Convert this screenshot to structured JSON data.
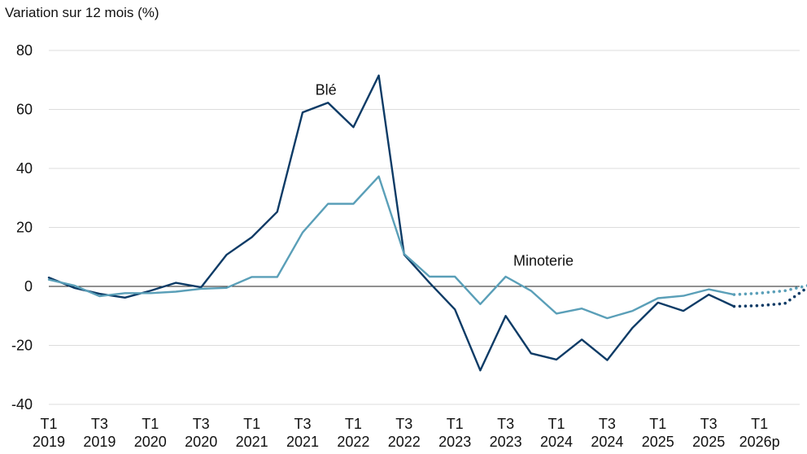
{
  "chart_data": {
    "type": "line",
    "ylabel": "Variation sur 12 mois (%)",
    "ylim": [
      -40,
      80
    ],
    "yticks": [
      -40,
      -20,
      0,
      20,
      40,
      60,
      80
    ],
    "grid": true,
    "xtick_labels": [
      {
        "index": 0,
        "line1": "T1",
        "line2": "2019"
      },
      {
        "index": 2,
        "line1": "T3",
        "line2": "2019"
      },
      {
        "index": 4,
        "line1": "T1",
        "line2": "2020"
      },
      {
        "index": 6,
        "line1": "T3",
        "line2": "2020"
      },
      {
        "index": 8,
        "line1": "T1",
        "line2": "2021"
      },
      {
        "index": 10,
        "line1": "T3",
        "line2": "2021"
      },
      {
        "index": 12,
        "line1": "T1",
        "line2": "2022"
      },
      {
        "index": 14,
        "line1": "T3",
        "line2": "2022"
      },
      {
        "index": 16,
        "line1": "T1",
        "line2": "2023"
      },
      {
        "index": 18,
        "line1": "T3",
        "line2": "2023"
      },
      {
        "index": 20,
        "line1": "T1",
        "line2": "2024"
      },
      {
        "index": 22,
        "line1": "T3",
        "line2": "2024"
      },
      {
        "index": 24,
        "line1": "T1",
        "line2": "2025"
      },
      {
        "index": 26,
        "line1": "T3",
        "line2": "2025"
      },
      {
        "index": 28,
        "line1": "T1",
        "line2": "2026p"
      }
    ],
    "series": [
      {
        "name": "Blé",
        "color": "#0d3b66",
        "values": [
          3,
          -0.5,
          -2.5,
          -3.8,
          -1.5,
          1.2,
          -0.3,
          10.7,
          16.7,
          25.3,
          59,
          62.3,
          54,
          71.5,
          10.8,
          1.2,
          -7.8,
          -28.5,
          -10,
          -22.7,
          -24.8,
          -18,
          -25,
          -14,
          -5.5,
          -8.3,
          -2.8,
          -6.8
        ],
        "forecast": [
          -6.8,
          -6.5,
          -5.8,
          0.3
        ]
      },
      {
        "name": "Minoterie",
        "color": "#5a9fb8",
        "values": [
          2.3,
          0.3,
          -3.3,
          -2.3,
          -2.3,
          -1.8,
          -0.8,
          -0.5,
          3.2,
          3.2,
          18.3,
          28,
          28,
          37.3,
          11,
          3.3,
          3.3,
          -6,
          3.3,
          -1.5,
          -9.2,
          -7.5,
          -10.8,
          -8.3,
          -4,
          -3.2,
          -1,
          -2.8
        ],
        "forecast": [
          -2.8,
          -2.3,
          -1.5,
          0.5
        ]
      }
    ],
    "annotations": [
      {
        "text": "Blé",
        "index": 10.5,
        "value": 65
      },
      {
        "text": "Minoterie",
        "index": 18.3,
        "value": 7
      }
    ]
  }
}
